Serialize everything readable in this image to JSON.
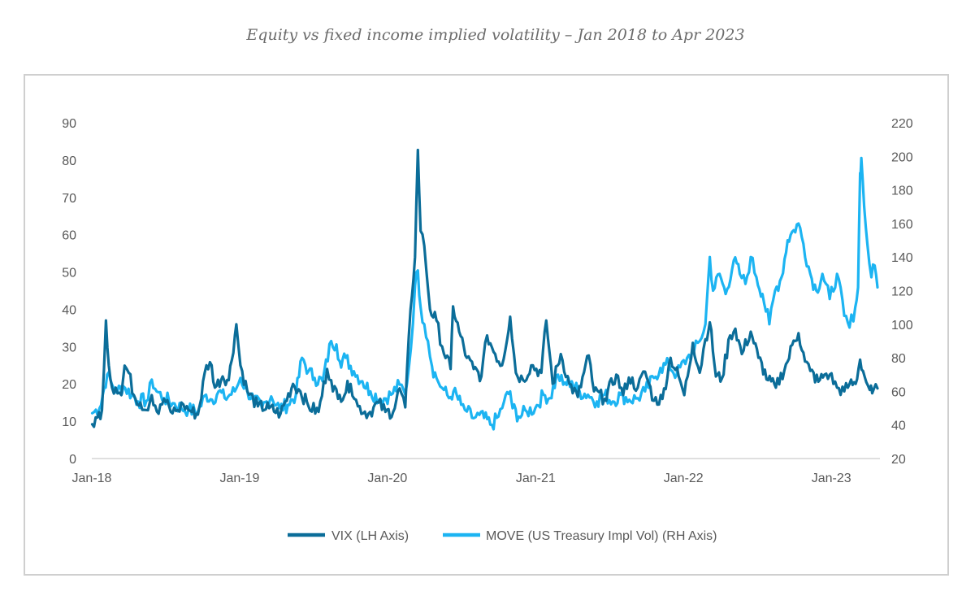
{
  "chart_data": {
    "type": "line",
    "title": "Equity vs fixed income implied volatility – Jan 2018 to Apr 2023",
    "x_ticks": [
      "Jan-18",
      "Jan-19",
      "Jan-20",
      "Jan-21",
      "Jan-22",
      "Jan-23"
    ],
    "y_left": {
      "lim": [
        0,
        90
      ],
      "ticks": [
        "0",
        "10",
        "20",
        "30",
        "40",
        "50",
        "60",
        "70",
        "80",
        "90"
      ]
    },
    "y_right": {
      "lim": [
        20,
        220
      ],
      "ticks": [
        "20",
        "40",
        "60",
        "80",
        "100",
        "120",
        "140",
        "160",
        "180",
        "200",
        "220"
      ]
    },
    "legend_position": "bottom",
    "grid": false,
    "series": [
      {
        "name": "VIX (LH Axis)",
        "axis": "left",
        "color": "#0b6d99",
        "points": [
          [
            "2018-01-02",
            9.2
          ],
          [
            "2018-01-15",
            11
          ],
          [
            "2018-01-26",
            13
          ],
          [
            "2018-02-05",
            37
          ],
          [
            "2018-02-12",
            25
          ],
          [
            "2018-02-20",
            19
          ],
          [
            "2018-03-01",
            19
          ],
          [
            "2018-03-15",
            17
          ],
          [
            "2018-03-23",
            24.9
          ],
          [
            "2018-04-02",
            23
          ],
          [
            "2018-04-15",
            17
          ],
          [
            "2018-05-01",
            15
          ],
          [
            "2018-05-15",
            13
          ],
          [
            "2018-05-29",
            17
          ],
          [
            "2018-06-15",
            12
          ],
          [
            "2018-06-28",
            16
          ],
          [
            "2018-07-15",
            12.5
          ],
          [
            "2018-08-01",
            13
          ],
          [
            "2018-08-15",
            14.5
          ],
          [
            "2018-09-01",
            12.8
          ],
          [
            "2018-09-20",
            11.8
          ],
          [
            "2018-10-11",
            25
          ],
          [
            "2018-10-24",
            25
          ],
          [
            "2018-11-01",
            19
          ],
          [
            "2018-11-20",
            22
          ],
          [
            "2018-12-05",
            21
          ],
          [
            "2018-12-24",
            36
          ],
          [
            "2019-01-03",
            25
          ],
          [
            "2019-01-20",
            18
          ],
          [
            "2019-02-15",
            14
          ],
          [
            "2019-03-15",
            13.5
          ],
          [
            "2019-04-12",
            12
          ],
          [
            "2019-05-13",
            20
          ],
          [
            "2019-05-31",
            18
          ],
          [
            "2019-06-20",
            14
          ],
          [
            "2019-07-15",
            12.5
          ],
          [
            "2019-08-05",
            24
          ],
          [
            "2019-08-15",
            21
          ],
          [
            "2019-09-01",
            16
          ],
          [
            "2019-10-02",
            20
          ],
          [
            "2019-10-20",
            14
          ],
          [
            "2019-11-15",
            12
          ],
          [
            "2019-12-10",
            15
          ],
          [
            "2019-12-27",
            12.5
          ],
          [
            "2020-01-15",
            12.5
          ],
          [
            "2020-01-31",
            18.8
          ],
          [
            "2020-02-14",
            13.7
          ],
          [
            "2020-02-27",
            40
          ],
          [
            "2020-03-09",
            54
          ],
          [
            "2020-03-16",
            82.7
          ],
          [
            "2020-03-23",
            61
          ],
          [
            "2020-04-01",
            57
          ],
          [
            "2020-04-15",
            40
          ],
          [
            "2020-05-01",
            37
          ],
          [
            "2020-05-15",
            30
          ],
          [
            "2020-06-05",
            24
          ],
          [
            "2020-06-11",
            40.8
          ],
          [
            "2020-06-26",
            34
          ],
          [
            "2020-07-15",
            27
          ],
          [
            "2020-08-01",
            24
          ],
          [
            "2020-08-20",
            22
          ],
          [
            "2020-09-03",
            33
          ],
          [
            "2020-09-23",
            28
          ],
          [
            "2020-10-10",
            25
          ],
          [
            "2020-10-30",
            38
          ],
          [
            "2020-11-13",
            23
          ],
          [
            "2020-12-01",
            21
          ],
          [
            "2020-12-21",
            25
          ],
          [
            "2021-01-15",
            23
          ],
          [
            "2021-01-27",
            37
          ],
          [
            "2021-02-12",
            20
          ],
          [
            "2021-03-04",
            28
          ],
          [
            "2021-03-25",
            20
          ],
          [
            "2021-04-15",
            16.5
          ],
          [
            "2021-05-12",
            27.6
          ],
          [
            "2021-05-25",
            18
          ],
          [
            "2021-06-20",
            16
          ],
          [
            "2021-07-19",
            22.5
          ],
          [
            "2021-08-05",
            17
          ],
          [
            "2021-08-19",
            21.7
          ],
          [
            "2021-09-10",
            19
          ],
          [
            "2021-09-28",
            23.3
          ],
          [
            "2021-10-20",
            15.5
          ],
          [
            "2021-11-10",
            16
          ],
          [
            "2021-11-30",
            27
          ],
          [
            "2021-12-20",
            22
          ],
          [
            "2022-01-03",
            17
          ],
          [
            "2022-01-24",
            31
          ],
          [
            "2022-02-10",
            23
          ],
          [
            "2022-02-24",
            32
          ],
          [
            "2022-03-07",
            36.5
          ],
          [
            "2022-03-22",
            22
          ],
          [
            "2022-04-06",
            21.5
          ],
          [
            "2022-04-26",
            33
          ],
          [
            "2022-05-09",
            34.8
          ],
          [
            "2022-05-25",
            28
          ],
          [
            "2022-06-16",
            34
          ],
          [
            "2022-07-05",
            27
          ],
          [
            "2022-07-29",
            21
          ],
          [
            "2022-08-17",
            19
          ],
          [
            "2022-09-15",
            26
          ],
          [
            "2022-09-30",
            31.6
          ],
          [
            "2022-10-12",
            33.6
          ],
          [
            "2022-10-28",
            26
          ],
          [
            "2022-11-10",
            23.5
          ],
          [
            "2022-11-30",
            20.6
          ],
          [
            "2022-12-15",
            22.5
          ],
          [
            "2022-12-28",
            22.5
          ],
          [
            "2023-01-15",
            19
          ],
          [
            "2023-02-02",
            18
          ],
          [
            "2023-02-15",
            20
          ],
          [
            "2023-03-02",
            20
          ],
          [
            "2023-03-13",
            26.5
          ],
          [
            "2023-03-24",
            22
          ],
          [
            "2023-04-06",
            18.4
          ],
          [
            "2023-04-12",
            17.5
          ],
          [
            "2023-04-25",
            18.8
          ]
        ]
      },
      {
        "name": "MOVE (US Treasury Impl Vol) (RH Axis)",
        "axis": "right",
        "color": "#1cb4f2",
        "points": [
          [
            "2018-01-02",
            47
          ],
          [
            "2018-01-20",
            50
          ],
          [
            "2018-02-08",
            70
          ],
          [
            "2018-02-20",
            64
          ],
          [
            "2018-03-05",
            60
          ],
          [
            "2018-03-20",
            63
          ],
          [
            "2018-04-10",
            58
          ],
          [
            "2018-04-25",
            54
          ],
          [
            "2018-05-20",
            55
          ],
          [
            "2018-05-29",
            67
          ],
          [
            "2018-06-10",
            60
          ],
          [
            "2018-06-28",
            56
          ],
          [
            "2018-07-20",
            53
          ],
          [
            "2018-08-10",
            50
          ],
          [
            "2018-08-28",
            49
          ],
          [
            "2018-09-20",
            48
          ],
          [
            "2018-10-10",
            58
          ],
          [
            "2018-10-25",
            55
          ],
          [
            "2018-11-10",
            60
          ],
          [
            "2018-11-25",
            56
          ],
          [
            "2018-12-20",
            60
          ],
          [
            "2019-01-03",
            68
          ],
          [
            "2019-01-20",
            60
          ],
          [
            "2019-02-05",
            55
          ],
          [
            "2019-02-25",
            50
          ],
          [
            "2019-03-20",
            57
          ],
          [
            "2019-04-10",
            50
          ],
          [
            "2019-04-30",
            52
          ],
          [
            "2019-05-20",
            58
          ],
          [
            "2019-06-04",
            80
          ],
          [
            "2019-06-20",
            72
          ],
          [
            "2019-07-05",
            68
          ],
          [
            "2019-07-25",
            66
          ],
          [
            "2019-08-15",
            90
          ],
          [
            "2019-08-28",
            88
          ],
          [
            "2019-09-05",
            78
          ],
          [
            "2019-09-20",
            80
          ],
          [
            "2019-10-10",
            72
          ],
          [
            "2019-10-31",
            66
          ],
          [
            "2019-11-20",
            60
          ],
          [
            "2019-12-15",
            55
          ],
          [
            "2020-01-10",
            58
          ],
          [
            "2020-01-31",
            64
          ],
          [
            "2020-02-14",
            58
          ],
          [
            "2020-02-28",
            86
          ],
          [
            "2020-03-09",
            123
          ],
          [
            "2020-03-16",
            132
          ],
          [
            "2020-03-23",
            110
          ],
          [
            "2020-04-01",
            100
          ],
          [
            "2020-04-10",
            90
          ],
          [
            "2020-04-20",
            75
          ],
          [
            "2020-05-01",
            68
          ],
          [
            "2020-05-15",
            62
          ],
          [
            "2020-06-01",
            56
          ],
          [
            "2020-06-12",
            60
          ],
          [
            "2020-07-01",
            52
          ],
          [
            "2020-07-15",
            48
          ],
          [
            "2020-08-01",
            44
          ],
          [
            "2020-08-15",
            46
          ],
          [
            "2020-09-15",
            40
          ],
          [
            "2020-10-01",
            45
          ],
          [
            "2020-10-15",
            54
          ],
          [
            "2020-10-30",
            60
          ],
          [
            "2020-11-05",
            50
          ],
          [
            "2020-11-20",
            45
          ],
          [
            "2020-12-10",
            48
          ],
          [
            "2020-12-31",
            50
          ],
          [
            "2021-01-20",
            58
          ],
          [
            "2021-02-05",
            56
          ],
          [
            "2021-02-25",
            70
          ],
          [
            "2021-03-10",
            64
          ],
          [
            "2021-03-31",
            66
          ],
          [
            "2021-04-15",
            60
          ],
          [
            "2021-05-10",
            58
          ],
          [
            "2021-06-01",
            54
          ],
          [
            "2021-06-20",
            58
          ],
          [
            "2021-07-10",
            54
          ],
          [
            "2021-07-30",
            58
          ],
          [
            "2021-08-20",
            55
          ],
          [
            "2021-09-10",
            56
          ],
          [
            "2021-09-28",
            60
          ],
          [
            "2021-10-20",
            68
          ],
          [
            "2021-11-05",
            74
          ],
          [
            "2021-11-26",
            76
          ],
          [
            "2021-12-15",
            70
          ],
          [
            "2022-01-10",
            80
          ],
          [
            "2022-01-27",
            84
          ],
          [
            "2022-02-10",
            90
          ],
          [
            "2022-02-24",
            100
          ],
          [
            "2022-03-07",
            140
          ],
          [
            "2022-03-15",
            120
          ],
          [
            "2022-03-31",
            130
          ],
          [
            "2022-04-15",
            118
          ],
          [
            "2022-05-05",
            138
          ],
          [
            "2022-05-20",
            130
          ],
          [
            "2022-06-03",
            124
          ],
          [
            "2022-06-16",
            140
          ],
          [
            "2022-06-30",
            128
          ],
          [
            "2022-07-15",
            118
          ],
          [
            "2022-08-01",
            100
          ],
          [
            "2022-08-15",
            120
          ],
          [
            "2022-08-31",
            128
          ],
          [
            "2022-09-15",
            150
          ],
          [
            "2022-09-30",
            156
          ],
          [
            "2022-10-12",
            160
          ],
          [
            "2022-10-24",
            148
          ],
          [
            "2022-11-10",
            130
          ],
          [
            "2022-11-25",
            120
          ],
          [
            "2022-12-10",
            130
          ],
          [
            "2022-12-28",
            115
          ],
          [
            "2023-01-15",
            130
          ],
          [
            "2023-02-02",
            105
          ],
          [
            "2023-02-15",
            98
          ],
          [
            "2023-03-01",
            110
          ],
          [
            "2023-03-08",
            122
          ],
          [
            "2023-03-13",
            190
          ],
          [
            "2023-03-16",
            199
          ],
          [
            "2023-03-23",
            170
          ],
          [
            "2023-03-31",
            148
          ],
          [
            "2023-04-10",
            128
          ],
          [
            "2023-04-18",
            135
          ],
          [
            "2023-04-25",
            122
          ]
        ]
      }
    ]
  }
}
